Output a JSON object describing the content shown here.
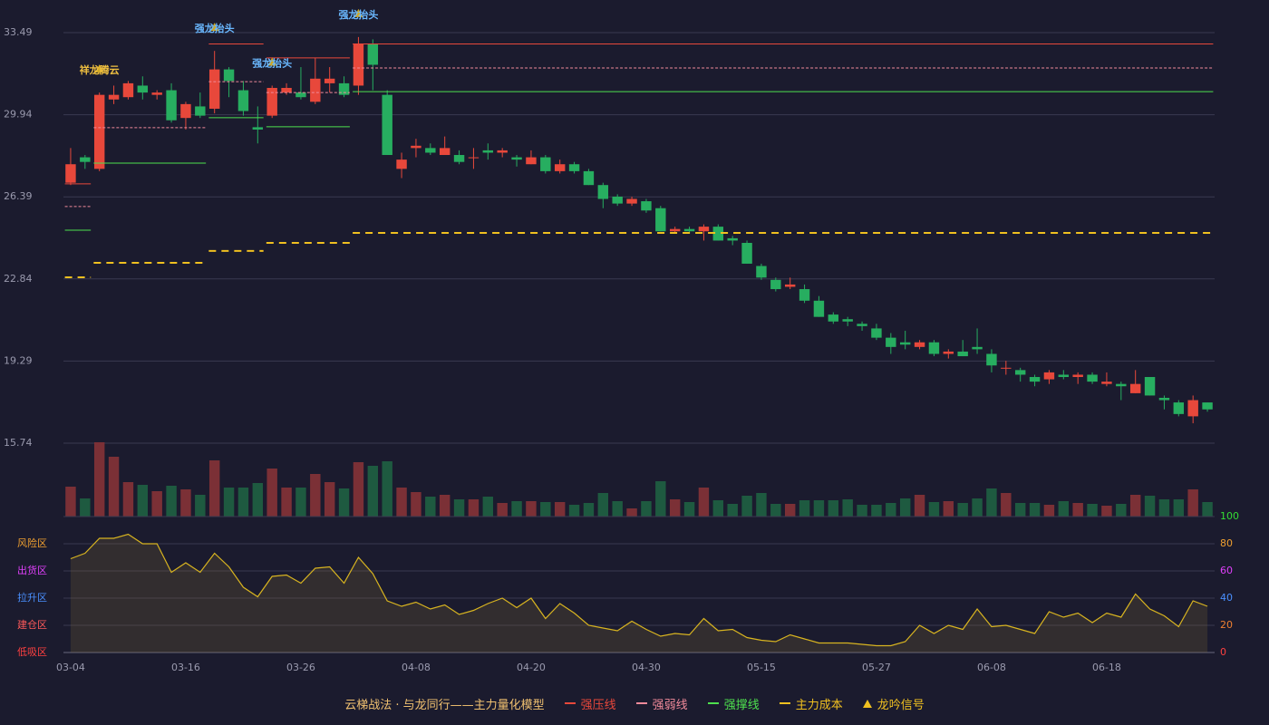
{
  "chart_data": [
    {
      "type": "candlestick",
      "categories": [
        "03-04",
        null,
        null,
        null,
        null,
        null,
        null,
        null,
        "03-16",
        null,
        null,
        null,
        null,
        null,
        null,
        null,
        "03-26",
        null,
        null,
        null,
        null,
        null,
        null,
        null,
        "04-08",
        null,
        null,
        null,
        null,
        null,
        null,
        null,
        "04-20",
        null,
        null,
        null,
        null,
        null,
        null,
        null,
        "04-30",
        null,
        null,
        null,
        null,
        null,
        null,
        null,
        "05-15",
        null,
        null,
        null,
        null,
        null,
        null,
        null,
        "05-27",
        null,
        null,
        null,
        null,
        null,
        null,
        null,
        "06-08",
        null,
        null,
        null,
        null,
        null,
        null,
        null,
        "06-18",
        null,
        null,
        null,
        null,
        null,
        null,
        null
      ],
      "open": [
        27.0,
        28.1,
        27.6,
        30.6,
        30.7,
        31.2,
        30.8,
        31.0,
        29.8,
        30.3,
        30.2,
        31.9,
        31.0,
        29.4,
        29.9,
        30.9,
        30.9,
        30.5,
        31.3,
        31.3,
        31.2,
        33.0,
        30.8,
        27.6,
        28.5,
        28.5,
        28.2,
        28.2,
        28.1,
        28.4,
        28.3,
        28.1,
        27.8,
        28.1,
        27.5,
        27.8,
        27.5,
        26.9,
        26.4,
        26.1,
        26.2,
        25.9,
        24.9,
        25.0,
        24.9,
        25.1,
        24.6,
        24.4,
        23.4,
        22.8,
        22.5,
        22.4,
        21.9,
        21.3,
        21.1,
        20.9,
        20.7,
        20.3,
        20.1,
        19.9,
        20.1,
        19.6,
        19.7,
        19.9,
        19.6,
        19.0,
        18.9,
        18.6,
        18.5,
        18.7,
        18.6,
        18.7,
        18.3,
        18.3,
        17.9,
        18.6,
        17.7,
        17.5,
        16.9,
        17.5
      ],
      "high": [
        28.5,
        28.2,
        30.9,
        31.2,
        31.4,
        31.6,
        31.0,
        31.3,
        30.5,
        30.9,
        32.7,
        32.0,
        31.4,
        30.3,
        31.2,
        31.3,
        32.0,
        32.4,
        32.0,
        31.6,
        33.3,
        33.2,
        31.0,
        28.3,
        28.9,
        28.7,
        29.0,
        28.4,
        28.5,
        28.7,
        28.5,
        28.2,
        28.4,
        28.2,
        28.0,
        27.9,
        27.6,
        27.0,
        26.5,
        26.4,
        26.3,
        26.0,
        25.1,
        25.1,
        25.2,
        25.2,
        24.7,
        24.5,
        23.5,
        22.9,
        22.9,
        22.6,
        22.1,
        21.4,
        21.2,
        21.0,
        20.9,
        20.5,
        20.6,
        20.2,
        20.2,
        19.8,
        20.2,
        20.7,
        19.8,
        19.3,
        19.0,
        18.7,
        18.9,
        18.9,
        18.8,
        18.8,
        18.8,
        18.4,
        18.9,
        18.6,
        17.8,
        17.6,
        17.8,
        17.5
      ],
      "low": [
        26.9,
        27.6,
        27.5,
        30.4,
        30.6,
        30.6,
        30.6,
        29.6,
        29.3,
        29.8,
        30.0,
        30.7,
        29.9,
        28.7,
        29.8,
        30.8,
        30.6,
        30.4,
        30.9,
        30.7,
        30.8,
        31.0,
        28.2,
        27.2,
        28.1,
        28.2,
        28.2,
        27.8,
        27.6,
        28.0,
        28.1,
        27.7,
        27.8,
        27.4,
        27.4,
        27.4,
        26.9,
        25.9,
        26.0,
        26.0,
        25.7,
        24.9,
        24.8,
        24.8,
        24.5,
        24.5,
        24.3,
        23.5,
        22.8,
        22.3,
        22.4,
        21.8,
        21.2,
        20.9,
        20.8,
        20.6,
        20.2,
        19.6,
        19.8,
        19.8,
        19.5,
        19.4,
        19.5,
        19.6,
        18.8,
        18.7,
        18.4,
        18.2,
        18.3,
        18.5,
        18.3,
        18.3,
        18.2,
        17.6,
        17.9,
        17.8,
        17.2,
        16.9,
        16.6,
        17.1
      ],
      "close": [
        27.8,
        27.9,
        30.8,
        30.8,
        31.3,
        30.9,
        30.9,
        29.7,
        30.4,
        29.9,
        31.9,
        31.4,
        30.1,
        29.3,
        31.1,
        31.1,
        30.7,
        31.5,
        31.5,
        30.8,
        33.0,
        32.1,
        28.2,
        28.0,
        28.6,
        28.3,
        28.5,
        27.9,
        28.1,
        28.3,
        28.4,
        28.0,
        28.1,
        27.5,
        27.8,
        27.5,
        26.9,
        26.3,
        26.1,
        26.3,
        25.8,
        24.9,
        25.0,
        24.9,
        25.1,
        24.5,
        24.5,
        23.5,
        22.9,
        22.4,
        22.6,
        21.9,
        21.2,
        21.0,
        21.0,
        20.8,
        20.3,
        19.9,
        20.0,
        20.1,
        19.6,
        19.7,
        19.5,
        19.8,
        19.1,
        19.0,
        18.7,
        18.4,
        18.8,
        18.6,
        18.7,
        18.4,
        18.4,
        18.2,
        18.3,
        17.8,
        17.6,
        17.0,
        17.6,
        17.2
      ],
      "up_color": "#e8483b",
      "down_color": "#27ae60",
      "ylim": [
        15.74,
        34.0
      ],
      "yticks": [
        15.74,
        19.29,
        22.84,
        26.39,
        29.94,
        33.49
      ],
      "grid": true,
      "levels": [
        {
          "name": "强压线",
          "color": "#e8483b",
          "line_style": "solid",
          "segments": [
            {
              "start": 0,
              "end": 1,
              "value": 26.95
            },
            {
              "start": 10,
              "end": 13,
              "value": 33.0
            },
            {
              "start": 14,
              "end": 19,
              "value": 32.4
            },
            {
              "start": 20,
              "end": 79,
              "value": 33.0
            }
          ]
        },
        {
          "name": "强弱线",
          "color": "#f08a9a",
          "line_style": "dotted",
          "segments": [
            {
              "start": 0,
              "end": 1,
              "value": 25.97
            },
            {
              "start": 2,
              "end": 9,
              "value": 29.38
            },
            {
              "start": 10,
              "end": 13,
              "value": 31.37
            },
            {
              "start": 14,
              "end": 19,
              "value": 30.9
            },
            {
              "start": 20,
              "end": 79,
              "value": 31.96
            }
          ]
        },
        {
          "name": "强撑线",
          "color": "#4ee04e",
          "line_style": "solid",
          "segments": [
            {
              "start": 0,
              "end": 1,
              "value": 24.95
            },
            {
              "start": 2,
              "end": 9,
              "value": 27.85
            },
            {
              "start": 10,
              "end": 13,
              "value": 29.81
            },
            {
              "start": 14,
              "end": 19,
              "value": 29.42
            },
            {
              "start": 20,
              "end": 79,
              "value": 30.94
            }
          ]
        },
        {
          "name": "主力成本",
          "color": "#f0c020",
          "line_style": "dashed",
          "segments": [
            {
              "start": 0,
              "end": 1,
              "value": 22.91
            },
            {
              "start": 2,
              "end": 9,
              "value": 23.54
            },
            {
              "start": 10,
              "end": 13,
              "value": 24.05
            },
            {
              "start": 14,
              "end": 19,
              "value": 24.4
            },
            {
              "start": 20,
              "end": 79,
              "value": 24.83
            }
          ]
        }
      ],
      "signal_name": "龙吟信号",
      "signal_color": "#f0c020",
      "signals": [
        {
          "index": 2,
          "label": "祥龙腾云",
          "color": "#f0c040"
        },
        {
          "index": 10,
          "label": "强龙抬头",
          "color": "#6ab8ff"
        },
        {
          "index": 14,
          "label": "强龙抬头",
          "color": "#6ab8ff"
        },
        {
          "index": 20,
          "label": "强龙抬头",
          "color": "#6ab8ff"
        }
      ],
      "legend_title": "云梯战法 · 与龙同行——主力量化模型",
      "legend_title_color": "#f0c070"
    },
    {
      "type": "bar",
      "values": [
        33,
        20,
        82,
        66,
        38,
        35,
        28,
        34,
        30,
        24,
        62,
        32,
        32,
        37,
        53,
        32,
        32,
        47,
        38,
        31,
        60,
        56,
        61,
        32,
        27,
        22,
        24,
        19,
        19,
        22,
        15,
        17,
        17,
        16,
        16,
        13,
        15,
        26,
        17,
        9,
        17,
        39,
        19,
        16,
        32,
        18,
        14,
        23,
        26,
        14,
        14,
        18,
        18,
        18,
        19,
        13,
        13,
        15,
        20,
        24,
        16,
        17,
        15,
        20,
        31,
        26,
        15,
        15,
        13,
        17,
        15,
        14,
        12,
        14,
        24,
        23,
        19,
        19,
        30,
        16
      ],
      "up_color": "#7b3036",
      "down_color": "#1e5a40"
    },
    {
      "type": "line",
      "values": [
        69,
        73,
        84,
        84,
        87,
        80,
        80,
        59,
        66,
        59,
        73,
        63,
        48,
        41,
        56,
        57,
        51,
        62,
        63,
        51,
        70,
        58,
        38,
        34,
        37,
        32,
        35,
        28,
        31,
        36,
        40,
        33,
        40,
        25,
        36,
        29,
        20,
        18,
        16,
        23,
        17,
        12,
        14,
        13,
        25,
        16,
        17,
        11,
        9,
        8,
        13,
        10,
        7,
        7,
        7,
        6,
        5,
        5,
        8,
        20,
        14,
        20,
        17,
        32,
        19,
        20,
        17,
        14,
        30,
        26,
        29,
        22,
        29,
        26,
        43,
        32,
        27,
        19,
        38,
        34
      ],
      "color": "#d8b420",
      "fill": "rgba(120,100,50,0.25)",
      "ylim": [
        0,
        100
      ],
      "yticks": [
        0,
        20,
        40,
        60,
        80,
        100
      ],
      "ytick_colors": [
        "#ff4040",
        "#f08030",
        "#4a90ff",
        "#e040fb",
        "#f0a030",
        "#33dd33"
      ],
      "zones": [
        {
          "value": 80,
          "label": "风险区",
          "color": "#f0a030"
        },
        {
          "value": 60,
          "label": "出货区",
          "color": "#e040fb"
        },
        {
          "value": 40,
          "label": "拉升区",
          "color": "#4a90ff"
        },
        {
          "value": 20,
          "label": "建仓区",
          "color": "#ff5a5a"
        },
        {
          "value": 0,
          "label": "低吸区",
          "color": "#ff4040"
        }
      ]
    }
  ]
}
